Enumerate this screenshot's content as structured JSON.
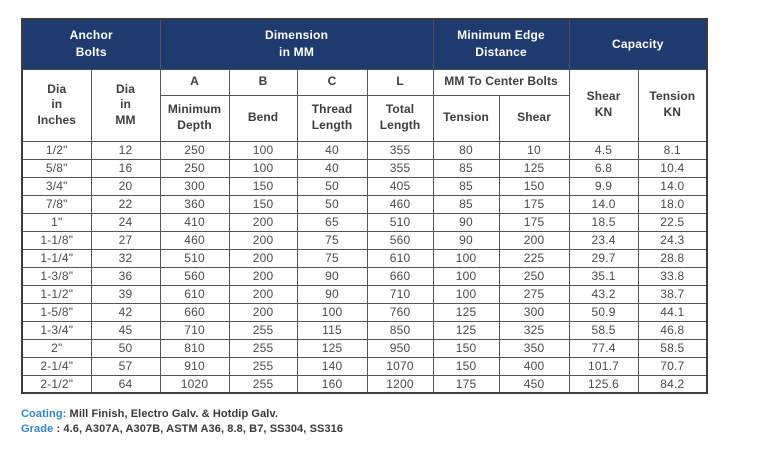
{
  "colors": {
    "header_bg": "#1e3a6e",
    "header_text": "#ffffff",
    "grid_line": "#555555",
    "cell_text": "#4a4a4a",
    "note_label_blue": "#2e86c6",
    "note_text": "#383838"
  },
  "table": {
    "groups": {
      "anchor_bolts": "Anchor\nBolts",
      "dimension": "Dimension\nin MM",
      "min_edge_distance": "Minimum Edge\nDistance",
      "capacity": "Capacity"
    },
    "columns": {
      "dia_inches": "Dia\nin\nInches",
      "dia_mm": "Dia\nin\nMM",
      "a": "A",
      "a_sub": "Minimum\nDepth",
      "b": "B",
      "b_sub": "Bend",
      "c": "C",
      "c_sub": "Thread\nLength",
      "l": "L",
      "l_sub": "Total\nLength",
      "mm_to_center_bolts": "MM To Center Bolts",
      "edge_tension": "Tension",
      "edge_shear": "Shear",
      "shear_kn": "Shear\nKN",
      "tension_kn": "Tension\nKN"
    },
    "rows": [
      [
        "1/2\"",
        "12",
        "250",
        "100",
        "40",
        "355",
        "80",
        "10",
        "4.5",
        "8.1"
      ],
      [
        "5/8\"",
        "16",
        "250",
        "100",
        "40",
        "355",
        "85",
        "125",
        "6.8",
        "10.4"
      ],
      [
        "3/4\"",
        "20",
        "300",
        "150",
        "50",
        "405",
        "85",
        "150",
        "9.9",
        "14.0"
      ],
      [
        "7/8\"",
        "22",
        "360",
        "150",
        "50",
        "460",
        "85",
        "175",
        "14.0",
        "18.0"
      ],
      [
        "1\"",
        "24",
        "410",
        "200",
        "65",
        "510",
        "90",
        "175",
        "18.5",
        "22.5"
      ],
      [
        "1-1/8\"",
        "27",
        "460",
        "200",
        "75",
        "560",
        "90",
        "200",
        "23.4",
        "24.3"
      ],
      [
        "1-1/4\"",
        "32",
        "510",
        "200",
        "75",
        "610",
        "100",
        "225",
        "29.7",
        "28.8"
      ],
      [
        "1-3/8\"",
        "36",
        "560",
        "200",
        "90",
        "660",
        "100",
        "250",
        "35.1",
        "33.8"
      ],
      [
        "1-1/2\"",
        "39",
        "610",
        "200",
        "90",
        "710",
        "100",
        "275",
        "43.2",
        "38.7"
      ],
      [
        "1-5/8\"",
        "42",
        "660",
        "200",
        "100",
        "760",
        "125",
        "300",
        "50.9",
        "44.1"
      ],
      [
        "1-3/4\"",
        "45",
        "710",
        "255",
        "115",
        "850",
        "125",
        "325",
        "58.5",
        "46.8"
      ],
      [
        "2\"",
        "50",
        "810",
        "255",
        "125",
        "950",
        "150",
        "350",
        "77.4",
        "58.5"
      ],
      [
        "2-1/4\"",
        "57",
        "910",
        "255",
        "140",
        "1070",
        "150",
        "400",
        "101.7",
        "70.7"
      ],
      [
        "2-1/2\"",
        "64",
        "1020",
        "255",
        "160",
        "1200",
        "175",
        "450",
        "125.6",
        "84.2"
      ]
    ]
  },
  "notes": {
    "coating_label": "Coating:",
    "coating_value": " Mill Finish, Electro Galv. & Hotdip Galv.",
    "grade_label": "Grade",
    "grade_value": " : 4.6, A307A, A307B, ASTM A36, 8.8, B7, SS304, SS316"
  }
}
